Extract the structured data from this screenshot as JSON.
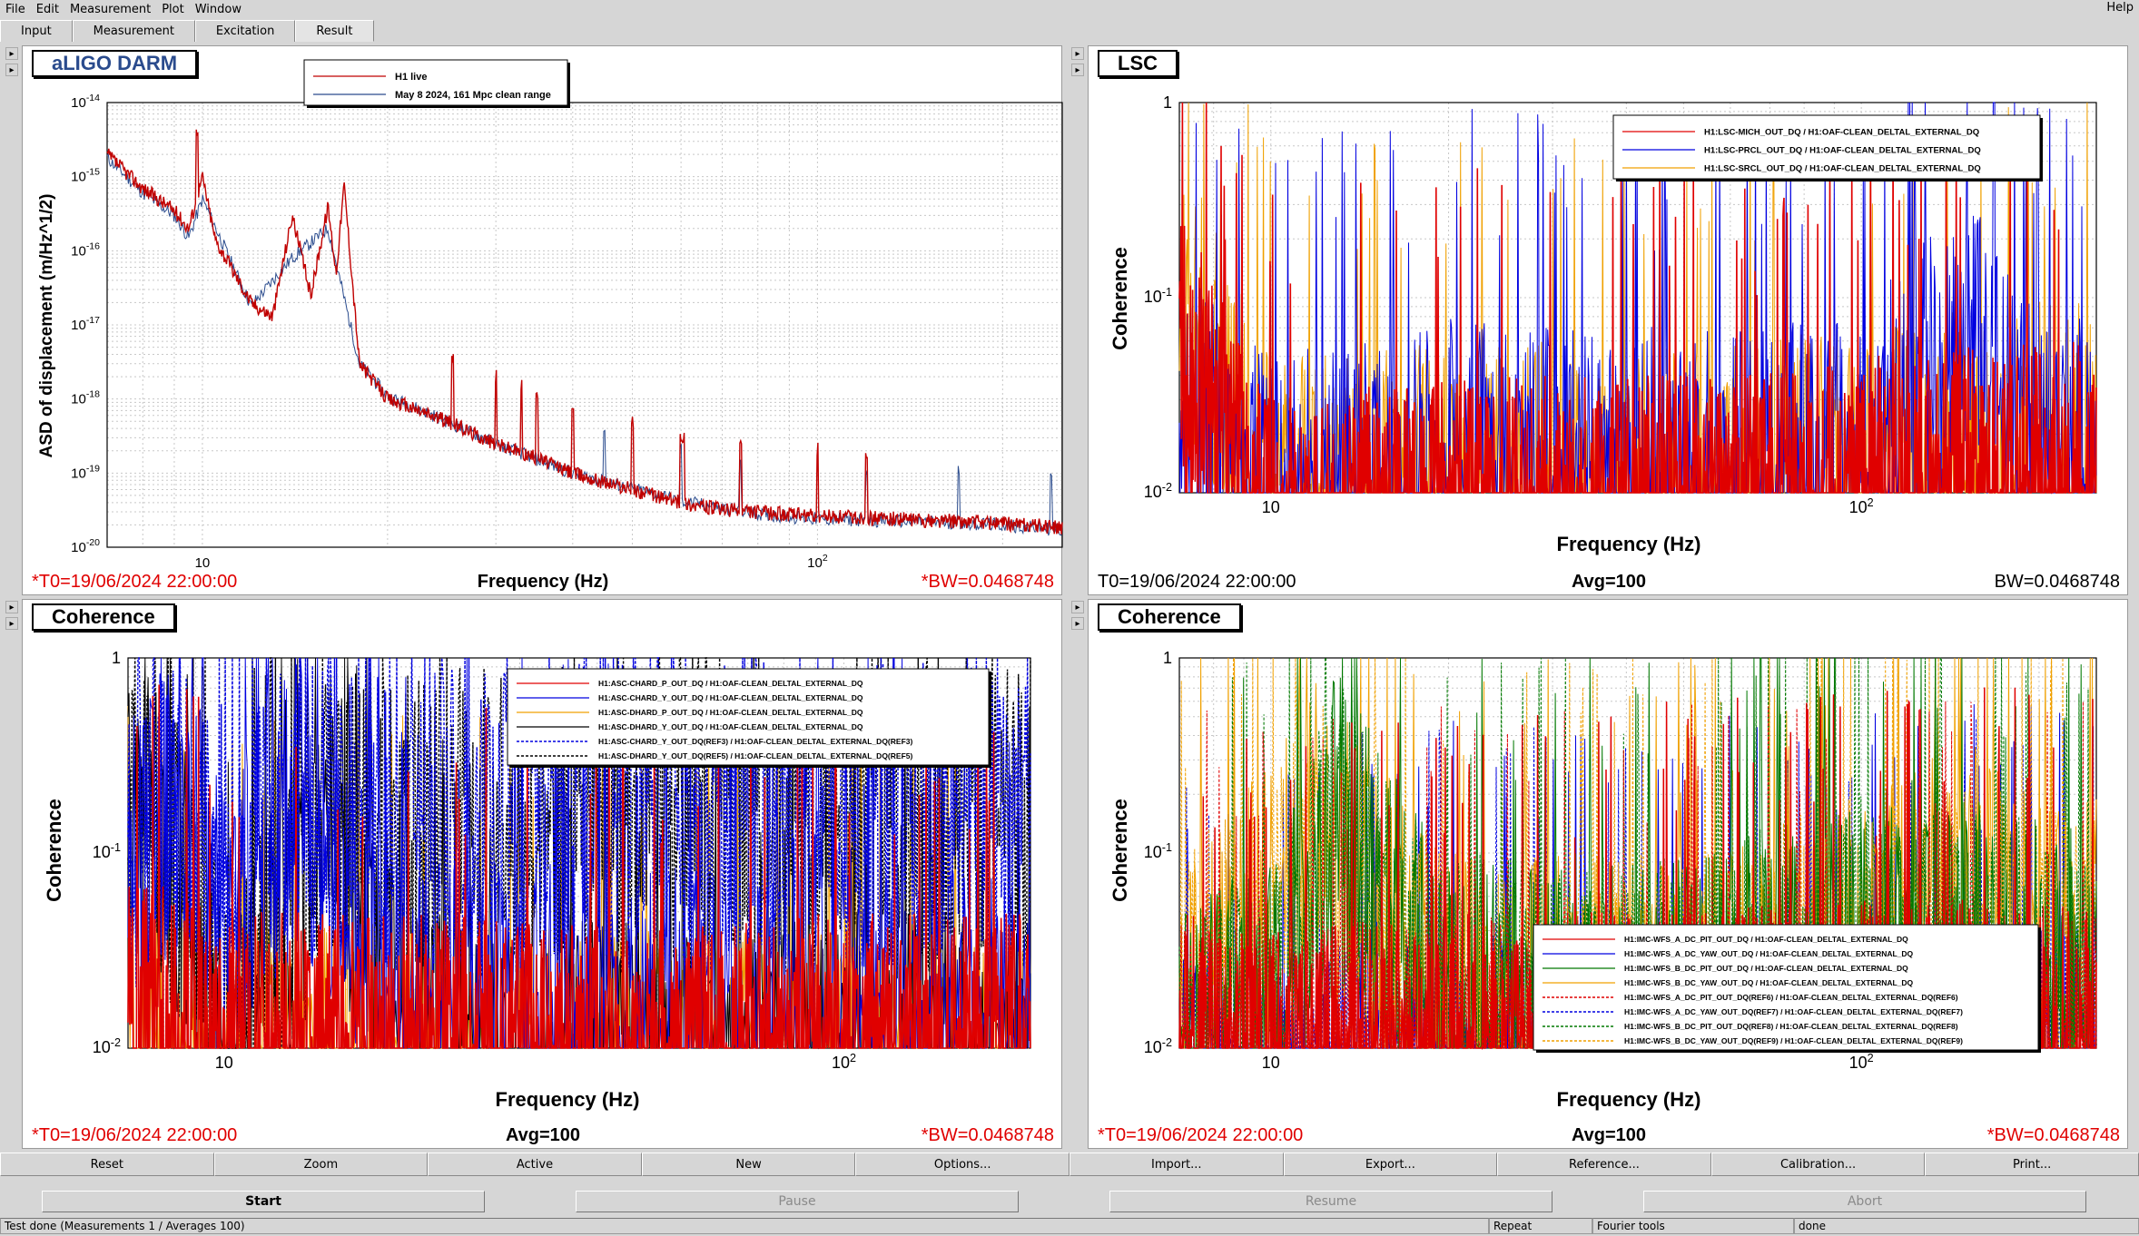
{
  "menu": [
    "File",
    "Edit",
    "Measurement",
    "Plot",
    "Window"
  ],
  "help": "Help",
  "tabs": [
    "Input",
    "Measurement",
    "Excitation",
    "Result"
  ],
  "active_tab": "Result",
  "pads": {
    "p1": {
      "title": "aLIGO DARM",
      "footer_left": "*T0=19/06/2024 22:00:00",
      "footer_center": "Frequency (Hz)",
      "footer_right": "*BW=0.0468748"
    },
    "p2": {
      "title": "LSC",
      "footer_left": "T0=19/06/2024 22:00:00",
      "footer_center": "Avg=100",
      "footer_right": "BW=0.0468748",
      "xlabel": "Frequency (Hz)"
    },
    "p3": {
      "title": "Coherence",
      "footer_left": "*T0=19/06/2024 22:00:00",
      "footer_center": "Avg=100",
      "footer_right": "*BW=0.0468748",
      "xlabel": "Frequency (Hz)"
    },
    "p4": {
      "title": "Coherence",
      "footer_left": "*T0=19/06/2024 22:00:00",
      "footer_center": "Avg=100",
      "footer_right": "*BW=0.0468748",
      "xlabel": "Frequency (Hz)"
    }
  },
  "buttons": [
    "Reset",
    "Zoom",
    "Active",
    "New",
    "Options...",
    "Import...",
    "Export...",
    "Reference...",
    "Calibration...",
    "Print..."
  ],
  "controls": {
    "start": "Start",
    "pause": "Pause",
    "resume": "Resume",
    "abort": "Abort"
  },
  "status": {
    "left": "Test done (Measurements 1 / Averages 100)",
    "repeat": "Repeat",
    "tool": "Fourier tools",
    "state": "done"
  },
  "colors": {
    "red": "#e00000",
    "darkred": "#c00000",
    "blue": "#0000e0",
    "orange": "#f0a000",
    "black": "#000000",
    "green": "#007800",
    "title_blue": "#2a4b8d",
    "footer_red": "#e00000"
  },
  "chart_data": [
    {
      "type": "line",
      "title": "aLIGO DARM",
      "xlabel": "Frequency (Hz)",
      "ylabel": "ASD of displacement (m/Hz^1/2)",
      "x_scale": "log",
      "y_scale": "log",
      "xlim": [
        7,
        250
      ],
      "ylim": [
        1e-20,
        1e-14
      ],
      "xticks": [
        "10",
        "10^2"
      ],
      "yticks": [
        "10^-14",
        "10^-15",
        "10^-16",
        "10^-17",
        "10^-18",
        "10^-19",
        "10^-20"
      ],
      "grid": true,
      "legend_placement": "top-center",
      "series": [
        {
          "name": "H1 live",
          "color": "#c00000",
          "x": [
            7,
            8,
            9,
            9.5,
            10,
            10.5,
            12,
            13,
            14,
            15,
            16,
            16.5,
            17,
            18,
            20,
            25,
            30,
            35,
            40,
            50,
            60,
            70,
            80,
            100,
            120,
            150,
            180,
            200,
            220,
            250
          ],
          "y": [
            2e-15,
            7e-16,
            3.5e-16,
            2e-16,
            1e-15,
            1.4e-16,
            2e-17,
            1.3e-17,
            3e-16,
            2.5e-17,
            4e-16,
            5e-17,
            8e-16,
            3e-18,
            1e-18,
            5e-19,
            2.5e-19,
            1.6e-19,
            1e-19,
            6e-20,
            4e-20,
            3.2e-20,
            3e-20,
            2.6e-20,
            2.5e-20,
            2.3e-20,
            2.2e-20,
            2.1e-20,
            2e-20,
            1.8e-20
          ]
        },
        {
          "name": "May 8 2024, 161 Mpc clean range",
          "color": "#2a4b8d",
          "x": [
            7,
            8,
            9,
            9.5,
            10,
            12,
            14,
            16,
            18,
            20,
            25,
            30,
            40,
            60,
            80,
            100,
            150,
            200,
            250
          ],
          "y": [
            1.8e-15,
            6e-16,
            3e-16,
            1.5e-16,
            5e-16,
            1.8e-17,
            8e-17,
            2e-16,
            3e-18,
            1.1e-18,
            5e-19,
            2.5e-19,
            1e-19,
            4.2e-20,
            2.8e-20,
            2.4e-20,
            2.2e-20,
            2e-20,
            1.7e-20
          ]
        }
      ]
    },
    {
      "type": "line",
      "title": "LSC",
      "xlabel": "Frequency (Hz)",
      "ylabel": "Coherence",
      "x_scale": "log",
      "y_scale": "log",
      "xlim": [
        7,
        250
      ],
      "ylim": [
        0.01,
        1
      ],
      "xticks": [
        "10",
        "10^2"
      ],
      "yticks": [
        "1",
        "10^-1",
        "10^-2"
      ],
      "grid": true,
      "legend_placement": "top-right",
      "series": [
        {
          "name": "H1:LSC-MICH_OUT_DQ / H1:OAF-CLEAN_DELTAL_EXTERNAL_DQ",
          "color": "#e00000",
          "x": [
            7,
            10,
            20,
            50,
            100,
            200
          ],
          "y": [
            0.3,
            0.03,
            0.04,
            0.04,
            0.05,
            0.06
          ]
        },
        {
          "name": "H1:LSC-PRCL_OUT_DQ / H1:OAF-CLEAN_DELTAL_EXTERNAL_DQ",
          "color": "#0000e0",
          "x": [
            7,
            10,
            20,
            50,
            100,
            150,
            200
          ],
          "y": [
            0.15,
            0.05,
            0.08,
            0.07,
            0.08,
            0.4,
            0.08
          ]
        },
        {
          "name": "H1:LSC-SRCL_OUT_DQ / H1:OAF-CLEAN_DELTAL_EXTERNAL_DQ",
          "color": "#f0a000",
          "x": [
            7,
            10,
            20,
            50,
            100,
            200
          ],
          "y": [
            0.6,
            0.05,
            0.06,
            0.06,
            0.07,
            0.1
          ]
        }
      ]
    },
    {
      "type": "line",
      "title": "Coherence",
      "xlabel": "Frequency (Hz)",
      "ylabel": "Coherence",
      "x_scale": "log",
      "y_scale": "log",
      "xlim": [
        7,
        200
      ],
      "ylim": [
        0.01,
        1
      ],
      "xticks": [
        "10",
        "10^2"
      ],
      "yticks": [
        "1",
        "10^-1",
        "10^-2"
      ],
      "grid": true,
      "legend_placement": "top-right",
      "series": [
        {
          "name": "H1:ASC-CHARD_P_OUT_DQ / H1:OAF-CLEAN_DELTAL_EXTERNAL_DQ",
          "color": "#e00000",
          "x": [
            7,
            10,
            20,
            50,
            100,
            180
          ],
          "y": [
            0.08,
            0.05,
            0.05,
            0.04,
            0.05,
            0.05
          ]
        },
        {
          "name": "H1:ASC-CHARD_Y_OUT_DQ / H1:OAF-CLEAN_DELTAL_EXTERNAL_DQ",
          "color": "#0000e0",
          "x": [
            7,
            8,
            9,
            10,
            12,
            14,
            20,
            50,
            100,
            180
          ],
          "y": [
            0.5,
            0.95,
            0.95,
            0.2,
            0.95,
            0.95,
            0.1,
            0.08,
            0.15,
            0.08
          ]
        },
        {
          "name": "H1:ASC-DHARD_P_OUT_DQ / H1:OAF-CLEAN_DELTAL_EXTERNAL_DQ",
          "color": "#f0a000",
          "x": [
            7,
            10,
            20,
            50,
            100,
            180
          ],
          "y": [
            0.05,
            0.04,
            0.05,
            0.04,
            0.05,
            0.04
          ]
        },
        {
          "name": "H1:ASC-DHARD_Y_OUT_DQ / H1:OAF-CLEAN_DELTAL_EXTERNAL_DQ",
          "color": "#000000",
          "x": [
            7,
            8,
            9,
            10,
            12,
            15,
            20
          ],
          "y": [
            0.9,
            0.8,
            0.3,
            0.05,
            0.2,
            0.9,
            0.05
          ]
        },
        {
          "name": "H1:ASC-CHARD_Y_OUT_DQ(REF3) / H1:OAF-CLEAN_DELTAL_EXTERNAL_DQ(REF3)",
          "color": "#0000e0",
          "x": [
            7,
            8,
            9,
            10,
            12,
            14
          ],
          "y": [
            0.5,
            0.95,
            0.9,
            0.2,
            0.9,
            0.95
          ]
        },
        {
          "name": "H1:ASC-DHARD_Y_OUT_DQ(REF5) / H1:OAF-CLEAN_DELTAL_EXTERNAL_DQ(REF5)",
          "color": "#000000",
          "x": [
            7,
            8,
            9,
            10,
            12,
            15
          ],
          "y": [
            0.9,
            0.7,
            0.3,
            0.05,
            0.2,
            0.9
          ]
        }
      ]
    },
    {
      "type": "line",
      "title": "Coherence",
      "xlabel": "Frequency (Hz)",
      "ylabel": "Coherence",
      "x_scale": "log",
      "y_scale": "log",
      "xlim": [
        7,
        250
      ],
      "ylim": [
        0.01,
        1
      ],
      "xticks": [
        "10",
        "10^2"
      ],
      "yticks": [
        "1",
        "10^-1",
        "10^-2"
      ],
      "grid": true,
      "legend_placement": "bottom-right",
      "series": [
        {
          "name": "H1:IMC-WFS_A_DC_PIT_OUT_DQ / H1:OAF-CLEAN_DELTAL_EXTERNAL_DQ",
          "color": "#e00000",
          "x": [
            7,
            10,
            20,
            50,
            100,
            200
          ],
          "y": [
            0.05,
            0.04,
            0.05,
            0.05,
            0.06,
            0.06
          ]
        },
        {
          "name": "H1:IMC-WFS_A_DC_YAW_OUT_DQ / H1:OAF-CLEAN_DELTAL_EXTERNAL_DQ",
          "color": "#0000e0",
          "x": [
            7,
            10,
            20,
            50,
            100,
            200
          ],
          "y": [
            0.03,
            0.03,
            0.04,
            0.04,
            0.05,
            0.05
          ]
        },
        {
          "name": "H1:IMC-WFS_B_DC_PIT_OUT_DQ / H1:OAF-CLEAN_DELTAL_EXTERNAL_DQ",
          "color": "#007800",
          "x": [
            7,
            10,
            13,
            20,
            50,
            100,
            150,
            200
          ],
          "y": [
            0.05,
            0.1,
            0.9,
            0.1,
            0.1,
            0.2,
            0.3,
            0.15
          ]
        },
        {
          "name": "H1:IMC-WFS_B_DC_YAW_OUT_DQ / H1:OAF-CLEAN_DELTAL_EXTERNAL_DQ",
          "color": "#f0a000",
          "x": [
            7,
            10,
            12,
            20,
            50,
            100,
            150,
            200
          ],
          "y": [
            0.1,
            0.3,
            0.8,
            0.1,
            0.1,
            0.2,
            0.4,
            0.2
          ]
        },
        {
          "name": "H1:IMC-WFS_A_DC_PIT_OUT_DQ(REF6) / H1:OAF-CLEAN_DELTAL_EXTERNAL_DQ(REF6)",
          "color": "#e00000",
          "x": [
            7,
            10,
            20,
            50,
            100,
            200
          ],
          "y": [
            0.05,
            0.04,
            0.05,
            0.05,
            0.05,
            0.05
          ]
        },
        {
          "name": "H1:IMC-WFS_A_DC_YAW_OUT_DQ(REF7) / H1:OAF-CLEAN_DELTAL_EXTERNAL_DQ(REF7)",
          "color": "#0000e0",
          "x": [
            7,
            10,
            20,
            50,
            100,
            200
          ],
          "y": [
            0.03,
            0.03,
            0.04,
            0.04,
            0.04,
            0.05
          ]
        },
        {
          "name": "H1:IMC-WFS_B_DC_PIT_OUT_DQ(REF8) / H1:OAF-CLEAN_DELTAL_EXTERNAL_DQ(REF8)",
          "color": "#007800",
          "x": [
            7,
            10,
            13,
            20,
            50,
            100,
            200
          ],
          "y": [
            0.05,
            0.1,
            0.8,
            0.1,
            0.1,
            0.2,
            0.15
          ]
        },
        {
          "name": "H1:IMC-WFS_B_DC_YAW_OUT_DQ(REF9) / H1:OAF-CLEAN_DELTAL_EXTERNAL_DQ(REF9)",
          "color": "#f0a000",
          "x": [
            7,
            10,
            12,
            20,
            50,
            100,
            200
          ],
          "y": [
            0.1,
            0.3,
            0.7,
            0.1,
            0.1,
            0.2,
            0.2
          ]
        }
      ]
    }
  ]
}
